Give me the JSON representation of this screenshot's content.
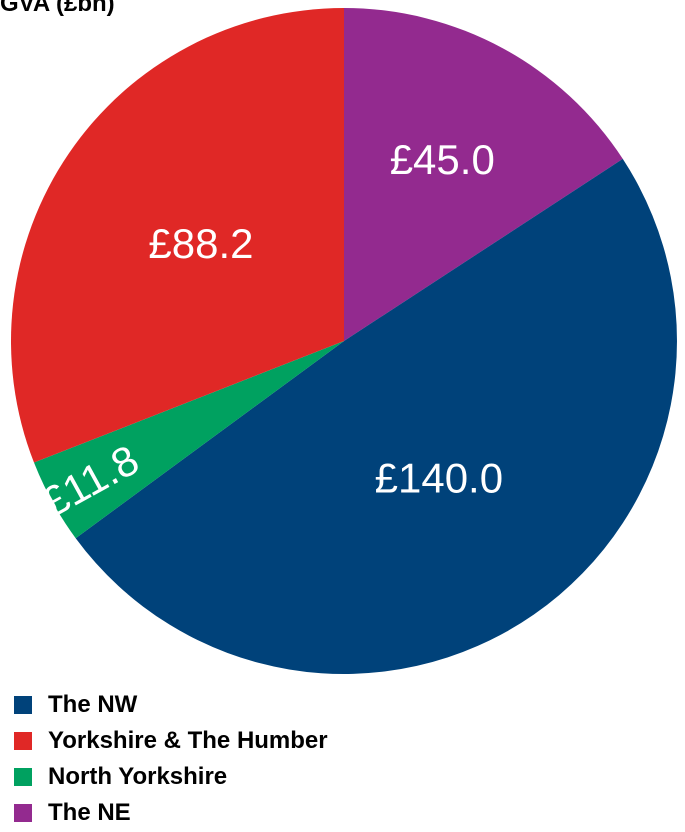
{
  "chart_data": {
    "type": "pie",
    "title": "GVA (£bn)",
    "slices": [
      {
        "name": "The NW",
        "value": 140.0,
        "label": "£140.0",
        "color": "#00427a"
      },
      {
        "name": "Yorkshire & The Humber",
        "value": 88.2,
        "label": "£88.2",
        "color": "#e02826"
      },
      {
        "name": "North Yorkshire",
        "value": 11.8,
        "label": "£11.8",
        "color": "#00a160"
      },
      {
        "name": "The NE",
        "value": 45.0,
        "label": "£45.0",
        "color": "#932a8f"
      }
    ],
    "legend_position": "bottom-left"
  }
}
